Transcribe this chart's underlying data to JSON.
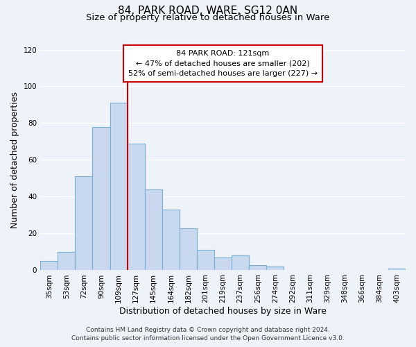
{
  "title": "84, PARK ROAD, WARE, SG12 0AN",
  "subtitle": "Size of property relative to detached houses in Ware",
  "xlabel": "Distribution of detached houses by size in Ware",
  "ylabel": "Number of detached properties",
  "bar_color": "#c8d9ef",
  "bar_edge_color": "#7aafd4",
  "categories": [
    "35sqm",
    "53sqm",
    "72sqm",
    "90sqm",
    "109sqm",
    "127sqm",
    "145sqm",
    "164sqm",
    "182sqm",
    "201sqm",
    "219sqm",
    "237sqm",
    "256sqm",
    "274sqm",
    "292sqm",
    "311sqm",
    "329sqm",
    "348sqm",
    "366sqm",
    "384sqm",
    "403sqm"
  ],
  "values": [
    5,
    10,
    51,
    78,
    91,
    69,
    44,
    33,
    23,
    11,
    7,
    8,
    3,
    2,
    0,
    0,
    0,
    0,
    0,
    0,
    1
  ],
  "vline_idx": 4.5,
  "vline_color": "#cc0000",
  "annotation_title": "84 PARK ROAD: 121sqm",
  "annotation_line1": "← 47% of detached houses are smaller (202)",
  "annotation_line2": "52% of semi-detached houses are larger (227) →",
  "annotation_box_color": "#ffffff",
  "annotation_box_edge": "#cc0000",
  "ylim": [
    0,
    120
  ],
  "yticks": [
    0,
    20,
    40,
    60,
    80,
    100,
    120
  ],
  "footer1": "Contains HM Land Registry data © Crown copyright and database right 2024.",
  "footer2": "Contains public sector information licensed under the Open Government Licence v3.0.",
  "background_color": "#eef2f9",
  "grid_color": "#ffffff",
  "title_fontsize": 11,
  "subtitle_fontsize": 9.5,
  "axis_label_fontsize": 9,
  "tick_fontsize": 7.5,
  "annotation_fontsize": 8,
  "footer_fontsize": 6.5
}
